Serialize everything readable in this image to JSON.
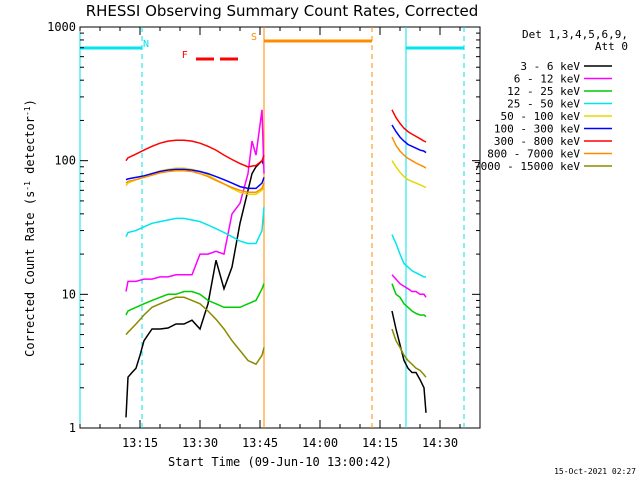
{
  "chart_data": {
    "type": "line",
    "title": "RHESSI Observing Summary Count Rates, Corrected",
    "xlabel": "Start Time (09-Jun-10 13:00:42)",
    "ylabel_main": "Corrected Count Rate (s",
    "ylabel_sup1": "-1",
    "ylabel_mid": " detector",
    "ylabel_sup2": "-1",
    "ylabel_end": ")",
    "y_scale": "log",
    "ylim": [
      1,
      1000
    ],
    "xlim_minutes": [
      0,
      100
    ],
    "x_ticks": [
      {
        "t": 15,
        "label": "13:15"
      },
      {
        "t": 30,
        "label": "13:30"
      },
      {
        "t": 45,
        "label": "13:45"
      },
      {
        "t": 60,
        "label": "14:00"
      },
      {
        "t": 75,
        "label": "14:15"
      },
      {
        "t": 90,
        "label": "14:30"
      }
    ],
    "y_ticks": [
      {
        "v": 1,
        "label": "1"
      },
      {
        "v": 10,
        "label": "10"
      },
      {
        "v": 100,
        "label": "100"
      },
      {
        "v": 1000,
        "label": "1000"
      }
    ],
    "legend_header_1": "Det 1,3,4,5,6,9,",
    "legend_header_2": "Att 0",
    "footer_date": "15-Oct-2021 02:27",
    "flags": [
      {
        "label": "N",
        "color": "#00e5ee",
        "segments": [
          [
            0,
            15.5
          ],
          [
            81.5,
            96
          ]
        ],
        "label_at": 16.5
      },
      {
        "label": "S",
        "color": "#ff8c00",
        "segments": [
          [
            46,
            73
          ]
        ],
        "label_at": 43.5
      },
      {
        "label": "F",
        "color": "#ff0000",
        "segments": [
          [
            29,
            33.5
          ],
          [
            35,
            39.5
          ]
        ],
        "label_at": 26.2
      }
    ],
    "markers": [
      {
        "t": 0,
        "color": "#00e5ee",
        "style": "solid"
      },
      {
        "t": 15.5,
        "color": "#00e5ee",
        "style": "dashed"
      },
      {
        "t": 46,
        "color": "#ff8c00",
        "style": "solid"
      },
      {
        "t": 73,
        "color": "#ff8c00",
        "style": "dashed"
      },
      {
        "t": 81.5,
        "color": "#00e5ee",
        "style": "solid"
      },
      {
        "t": 96,
        "color": "#00e5ee",
        "style": "dashed"
      }
    ],
    "series": [
      {
        "name": "3 - 6 keV",
        "color": "#000000",
        "x": [
          11.5,
          12,
          13,
          14,
          15,
          16,
          18,
          20,
          22,
          24,
          26,
          28,
          30,
          32,
          34,
          36,
          38,
          40,
          42,
          43,
          44,
          45.5,
          46,
          78,
          79,
          80,
          81,
          82,
          83,
          84,
          85,
          86,
          86.5
        ],
        "y": [
          1.2,
          2.4,
          2.6,
          2.8,
          3.5,
          4.5,
          5.5,
          5.5,
          5.6,
          6.0,
          6.0,
          6.4,
          5.5,
          8.5,
          18,
          11,
          16,
          34,
          60,
          80,
          90,
          100,
          92,
          7.5,
          5.5,
          4.2,
          3.2,
          2.8,
          2.6,
          2.6,
          2.3,
          2.0,
          1.3
        ]
      },
      {
        "name": "6 - 12 keV",
        "color": "#ff00ff",
        "x": [
          11.5,
          12,
          14,
          16,
          18,
          20,
          22,
          24,
          26,
          28,
          30,
          32,
          34,
          36,
          38,
          40,
          42,
          43,
          44,
          45.5,
          46,
          78,
          79,
          80,
          81,
          82,
          83,
          84,
          85,
          86,
          86.5
        ],
        "y": [
          10.5,
          12.5,
          12.5,
          13.0,
          13.0,
          13.5,
          13.5,
          14.0,
          14.0,
          14.0,
          20,
          20,
          21,
          20,
          40,
          48,
          80,
          140,
          110,
          240,
          80,
          14,
          13,
          12,
          11.5,
          11,
          10.5,
          10.5,
          10,
          10,
          9.5
        ]
      },
      {
        "name": "12 - 25 keV",
        "color": "#00cc00",
        "x": [
          11.5,
          12,
          14,
          16,
          18,
          20,
          22,
          24,
          26,
          28,
          30,
          32,
          34,
          36,
          38,
          40,
          42,
          44,
          45.5,
          46,
          78,
          79,
          80,
          81,
          82,
          83,
          84,
          85,
          86,
          86.5
        ],
        "y": [
          7.0,
          7.5,
          8.0,
          8.5,
          9.0,
          9.5,
          10.0,
          10.0,
          10.5,
          10.5,
          10.0,
          9.0,
          8.5,
          8.0,
          8.0,
          8.0,
          8.5,
          9.0,
          11,
          12,
          12,
          10,
          9.5,
          8.5,
          8.0,
          7.5,
          7.2,
          7.0,
          7.0,
          6.8
        ]
      },
      {
        "name": "25 - 50 keV",
        "color": "#00e5ee",
        "x": [
          11.5,
          12,
          14,
          16,
          18,
          20,
          22,
          24,
          26,
          28,
          30,
          32,
          34,
          36,
          38,
          40,
          42,
          44,
          45.5,
          46,
          78,
          79,
          80,
          81,
          82,
          83,
          84,
          85,
          86,
          86.5
        ],
        "y": [
          27,
          29,
          30,
          32,
          34,
          35,
          36,
          37,
          37,
          36,
          35,
          33,
          31,
          29,
          27,
          25,
          24,
          24,
          30,
          45,
          28,
          24,
          20,
          17,
          16,
          15,
          14.5,
          14,
          13.5,
          13.5
        ]
      },
      {
        "name": "50 - 100 keV",
        "color": "#e5d800",
        "x": [
          11.5,
          12,
          14,
          16,
          18,
          20,
          22,
          24,
          26,
          28,
          30,
          32,
          34,
          36,
          38,
          40,
          42,
          44,
          45.5,
          46,
          78,
          79,
          80,
          81,
          82,
          83,
          84,
          85,
          86,
          86.5
        ],
        "y": [
          65,
          68,
          72,
          76,
          80,
          84,
          86,
          88,
          88,
          86,
          83,
          78,
          72,
          67,
          62,
          58,
          56,
          56,
          60,
          65,
          100,
          90,
          82,
          76,
          72,
          70,
          68,
          66,
          64,
          63
        ]
      },
      {
        "name": "100 - 300 keV",
        "color": "#0000ff",
        "x": [
          11.5,
          12,
          14,
          16,
          18,
          20,
          22,
          24,
          26,
          28,
          30,
          32,
          34,
          36,
          38,
          40,
          42,
          44,
          45.5,
          46,
          78,
          79,
          80,
          81,
          82,
          83,
          84,
          85,
          86,
          86.5
        ],
        "y": [
          72,
          73,
          75,
          77,
          80,
          83,
          85,
          86,
          86,
          85,
          83,
          80,
          76,
          72,
          68,
          64,
          62,
          62,
          68,
          75,
          185,
          165,
          150,
          140,
          132,
          128,
          124,
          120,
          118,
          115
        ]
      },
      {
        "name": "300 - 800 keV",
        "color": "#ff0000",
        "x": [
          11.5,
          12,
          14,
          16,
          18,
          20,
          22,
          24,
          26,
          28,
          30,
          32,
          34,
          36,
          38,
          40,
          42,
          44,
          45.5,
          46,
          78,
          79,
          80,
          81,
          82,
          83,
          84,
          85,
          86,
          86.5
        ],
        "y": [
          100,
          105,
          112,
          120,
          128,
          135,
          140,
          142,
          142,
          140,
          135,
          128,
          120,
          110,
          102,
          95,
          90,
          92,
          100,
          110,
          240,
          210,
          190,
          175,
          165,
          158,
          152,
          146,
          140,
          138
        ]
      },
      {
        "name": "800 - 7000 keV",
        "color": "#ff8c00",
        "x": [
          11.5,
          12,
          14,
          16,
          18,
          20,
          22,
          24,
          26,
          28,
          30,
          32,
          34,
          36,
          38,
          40,
          42,
          44,
          45.5,
          46,
          78,
          79,
          80,
          81,
          82,
          83,
          84,
          85,
          86,
          86.5
        ],
        "y": [
          68,
          70,
          72,
          75,
          78,
          81,
          83,
          84,
          84,
          83,
          80,
          76,
          71,
          67,
          63,
          60,
          58,
          58,
          62,
          68,
          150,
          130,
          118,
          110,
          104,
          100,
          96,
          93,
          90,
          88
        ]
      },
      {
        "name": "7000 - 15000 keV",
        "color": "#8b8b00",
        "x": [
          11.5,
          12,
          14,
          16,
          18,
          20,
          22,
          24,
          26,
          28,
          30,
          32,
          34,
          36,
          38,
          40,
          42,
          44,
          45.5,
          46,
          78,
          79,
          80,
          81,
          82,
          83,
          84,
          85,
          86,
          86.5
        ],
        "y": [
          5.0,
          5.2,
          6.0,
          7.0,
          8.0,
          8.5,
          9.0,
          9.5,
          9.5,
          9.0,
          8.5,
          7.5,
          6.5,
          5.5,
          4.5,
          3.8,
          3.2,
          3.0,
          3.5,
          4.0,
          5.5,
          4.5,
          4.0,
          3.5,
          3.2,
          3.0,
          2.8,
          2.7,
          2.5,
          2.4
        ]
      }
    ]
  }
}
